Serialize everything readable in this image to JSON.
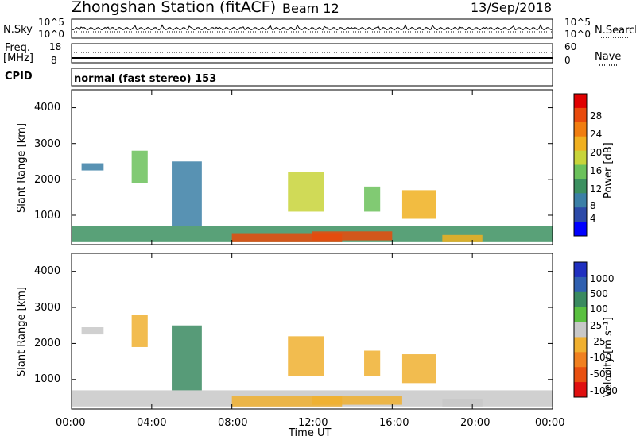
{
  "header": {
    "title": "Zhongshan Station (fitACF)",
    "beam": "Beam 12",
    "date": "13/Sep/2018"
  },
  "top_panels": {
    "nsky_label": "N.Sky",
    "nsky_ticks": [
      "10^5",
      "10^0"
    ],
    "nsearch_label": "N.Search",
    "nsearch_ticks": [
      "10^5",
      "10^0"
    ],
    "freq_label": "Freq.",
    "freq_unit": "[MHz]",
    "freq_ticks": [
      "18",
      "8"
    ],
    "nave_label": "Nave",
    "nave_ticks": [
      "60",
      "0"
    ],
    "cpid_label": "CPID",
    "cpid_value": "normal (fast stereo) 153"
  },
  "x_axis": {
    "title": "Time UT",
    "ticks": [
      "00:00",
      "04:00",
      "08:00",
      "12:00",
      "16:00",
      "20:00",
      "00:00"
    ]
  },
  "power_panel": {
    "ylabel": "Slant Range [km]",
    "yticks": [
      "4000",
      "3000",
      "2000",
      "1000"
    ],
    "colorbar_label": "Power [dB]",
    "colorbar_ticks": [
      "28",
      "24",
      "20",
      "16",
      "12",
      "8",
      "4"
    ]
  },
  "velocity_panel": {
    "ylabel": "Slant Range [km]",
    "yticks": [
      "4000",
      "3000",
      "2000",
      "1000"
    ],
    "colorbar_label": "Velocity [m s⁻¹]",
    "colorbar_ticks": [
      "1000",
      "500",
      "100",
      "25",
      "-25",
      "-100",
      "-500",
      "-1000"
    ]
  },
  "colors": {
    "power_scale": [
      "#0000ff",
      "#2c4aa8",
      "#3b7fa6",
      "#3c9060",
      "#6bc15b",
      "#c8d43a",
      "#f0b020",
      "#f07d10",
      "#e84a0c",
      "#e00000"
    ],
    "velocity_scale": [
      "#2030c0",
      "#3060b0",
      "#3a8a60",
      "#5ac040",
      "#c8c8c8",
      "#f0b030",
      "#f08020",
      "#e85010",
      "#e01010"
    ]
  },
  "chart_data": [
    {
      "type": "heatmap",
      "name": "Power [dB]",
      "x_range_hours": [
        0,
        24
      ],
      "y_range_km": [
        180,
        4500
      ],
      "z_range": [
        0,
        30
      ],
      "regions": [
        {
          "t0": 0.0,
          "t1": 24.0,
          "r0": 250,
          "r1": 700,
          "z": 10
        },
        {
          "t0": 8.0,
          "t1": 13.5,
          "r0": 250,
          "r1": 500,
          "z": 26
        },
        {
          "t0": 12.0,
          "t1": 16.0,
          "r0": 300,
          "r1": 550,
          "z": 24
        },
        {
          "t0": 10.8,
          "t1": 12.6,
          "r0": 1100,
          "r1": 2200,
          "z": 16
        },
        {
          "t0": 0.5,
          "t1": 1.6,
          "r0": 2250,
          "r1": 2450,
          "z": 6
        },
        {
          "t0": 14.6,
          "t1": 15.4,
          "r0": 1100,
          "r1": 1800,
          "z": 12
        },
        {
          "t0": 16.5,
          "t1": 18.2,
          "r0": 900,
          "r1": 1700,
          "z": 20
        },
        {
          "t0": 3.0,
          "t1": 3.8,
          "r0": 1900,
          "r1": 2800,
          "z": 14
        },
        {
          "t0": 5.0,
          "t1": 6.5,
          "r0": 700,
          "r1": 2500,
          "z": 8
        },
        {
          "t0": 18.5,
          "t1": 20.5,
          "r0": 250,
          "r1": 450,
          "z": 18
        }
      ]
    },
    {
      "type": "heatmap",
      "name": "Velocity [m s-1]",
      "x_range_hours": [
        0,
        24
      ],
      "y_range_km": [
        180,
        4500
      ],
      "z_range": [
        -1000,
        1000
      ],
      "regions": [
        {
          "t0": 0.0,
          "t1": 24.0,
          "r0": 250,
          "r1": 700,
          "z": -100
        },
        {
          "t0": 8.0,
          "t1": 13.5,
          "r0": 250,
          "r1": 550,
          "z": -150
        },
        {
          "t0": 12.0,
          "t1": 16.5,
          "r0": 300,
          "r1": 550,
          "z": -120
        },
        {
          "t0": 10.8,
          "t1": 12.6,
          "r0": 1100,
          "r1": 2200,
          "z": -150
        },
        {
          "t0": 0.5,
          "t1": 1.6,
          "r0": 2250,
          "r1": 2450,
          "z": 0
        },
        {
          "t0": 14.6,
          "t1": 15.4,
          "r0": 1100,
          "r1": 1800,
          "z": -150
        },
        {
          "t0": 16.5,
          "t1": 18.2,
          "r0": 900,
          "r1": 1700,
          "z": -150
        },
        {
          "t0": 3.0,
          "t1": 3.8,
          "r0": 1900,
          "r1": 2800,
          "z": -200
        },
        {
          "t0": 5.0,
          "t1": 6.5,
          "r0": 700,
          "r1": 2500,
          "z": 400
        },
        {
          "t0": 18.5,
          "t1": 20.5,
          "r0": 250,
          "r1": 450,
          "z": 50
        }
      ]
    }
  ]
}
